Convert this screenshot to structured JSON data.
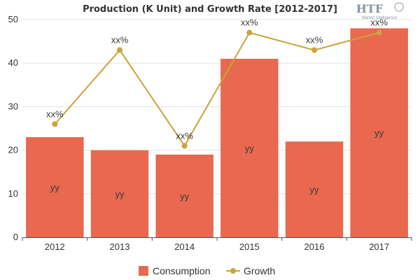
{
  "logo": {
    "main": "HTF",
    "sub": "Market Intelligence"
  },
  "chart_data": {
    "type": "bar",
    "title": "Production (K Unit) and Growth Rate [2012-2017]",
    "categories": [
      "2012",
      "2013",
      "2014",
      "2015",
      "2016",
      "2017"
    ],
    "ylim": [
      0,
      50
    ],
    "yticks": [
      0,
      10,
      20,
      30,
      40,
      50
    ],
    "grid": true,
    "legend_position": "bottom",
    "series": [
      {
        "name": "Consumption",
        "kind": "bar",
        "color": "#e8694f",
        "values": [
          23,
          20,
          19,
          41,
          22,
          48
        ],
        "labels": [
          "yy",
          "yy",
          "yy",
          "yy",
          "yy",
          "yy"
        ]
      },
      {
        "name": "Growth",
        "kind": "line",
        "color": "#c9a43a",
        "values": [
          26,
          43,
          21,
          47,
          43,
          47
        ],
        "labels": [
          "xx%",
          "xx%",
          "xx%",
          "xx%",
          "xx%",
          "xx%"
        ]
      }
    ]
  }
}
